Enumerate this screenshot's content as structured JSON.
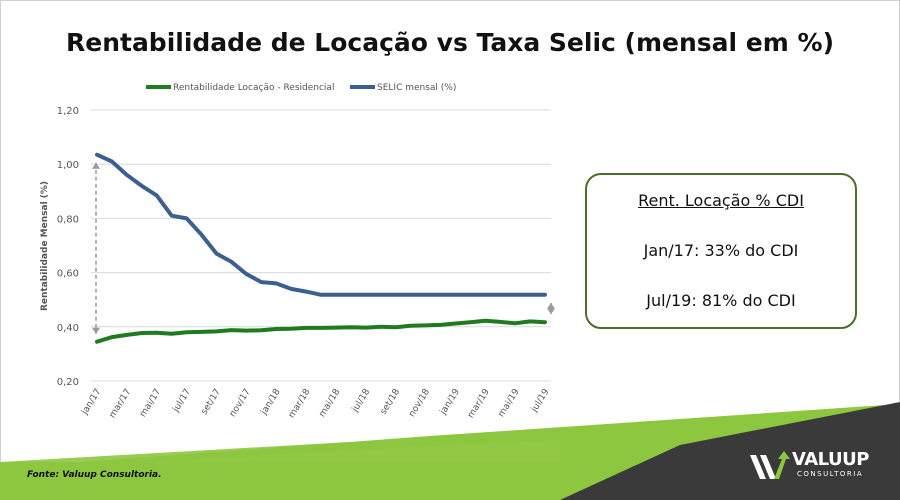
{
  "chart_data": {
    "type": "line",
    "title": "Rentabilidade de Locação vs Taxa Selic (mensal em %)",
    "ylabel": "Rentabilidade Mensal (%)",
    "xlabel": "",
    "ylim": [
      0.2,
      1.2
    ],
    "yticks": [
      "0,20",
      "0,40",
      "0,60",
      "0,80",
      "1,00",
      "1,20"
    ],
    "ytick_values": [
      0.2,
      0.4,
      0.6,
      0.8,
      1.0,
      1.2
    ],
    "categories": [
      "jan/17",
      "fev/17",
      "mar/17",
      "abr/17",
      "mai/17",
      "jun/17",
      "jul/17",
      "ago/17",
      "set/17",
      "out/17",
      "nov/17",
      "dez/17",
      "jan/18",
      "fev/18",
      "mar/18",
      "abr/18",
      "mai/18",
      "jun/18",
      "jul/18",
      "ago/18",
      "set/18",
      "out/18",
      "nov/18",
      "dez/18",
      "jan/19",
      "fev/19",
      "mar/19",
      "abr/19",
      "mai/19",
      "jun/19",
      "jul/19"
    ],
    "xtick_labels": [
      "jan/17",
      "mar/17",
      "mai/17",
      "jul/17",
      "set/17",
      "nov/17",
      "jan/18",
      "mar/18",
      "mai/18",
      "jul/18",
      "set/18",
      "nov/18",
      "jan/19",
      "mar/19",
      "mai/19",
      "jul/19"
    ],
    "series": [
      {
        "name": "Rentabilidade Locação - Residencial",
        "color": "#1e7b1e",
        "values": [
          0.345,
          0.362,
          0.37,
          0.377,
          0.378,
          0.374,
          0.38,
          0.381,
          0.383,
          0.388,
          0.386,
          0.387,
          0.392,
          0.393,
          0.396,
          0.396,
          0.397,
          0.398,
          0.397,
          0.4,
          0.398,
          0.404,
          0.405,
          0.407,
          0.412,
          0.417,
          0.422,
          0.418,
          0.413,
          0.42,
          0.417
        ]
      },
      {
        "name": "SELIC mensal (%)",
        "color": "#3c5f91",
        "values": [
          1.035,
          1.01,
          0.96,
          0.92,
          0.885,
          0.81,
          0.8,
          0.74,
          0.67,
          0.64,
          0.595,
          0.565,
          0.56,
          0.54,
          0.53,
          0.518,
          0.518,
          0.518,
          0.518,
          0.518,
          0.518,
          0.518,
          0.518,
          0.518,
          0.518,
          0.518,
          0.518,
          0.518,
          0.518,
          0.518,
          0.518
        ]
      }
    ],
    "grid": true,
    "legend_position": "top"
  },
  "callout": {
    "heading": "Rent. Locação % CDI",
    "line1": "Jan/17: 33% do CDI",
    "line2": "Jul/19: 81% do CDI"
  },
  "footer": {
    "source": "Fonte: Valuup Consultoria.",
    "logo_word": "VALUUP",
    "logo_sub": "CONSULTORIA"
  },
  "colors": {
    "green_band": "#8dc63f",
    "dark_band": "#3a3a3a",
    "callout_border": "#4e6b2a",
    "arrow": "#9a9a9a"
  }
}
